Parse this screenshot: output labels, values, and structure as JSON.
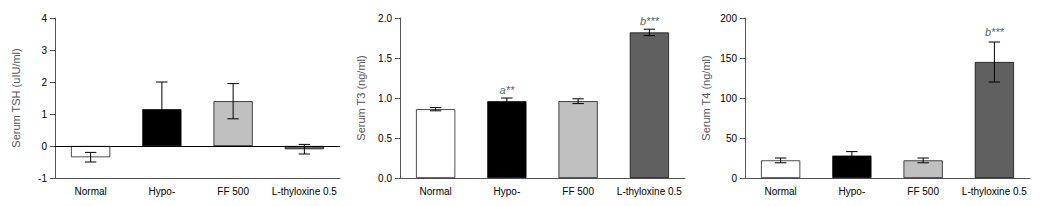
{
  "chart_data": [
    {
      "type": "bar",
      "ylabel": "Serum TSH (uIU/ml)",
      "categories": [
        "Normal",
        "Hypo-",
        "FF 500",
        "L-thyloxine 0.5"
      ],
      "values": [
        -0.35,
        1.15,
        1.4,
        -0.1
      ],
      "errors": [
        0.15,
        0.85,
        0.55,
        0.15
      ],
      "colors": [
        "#ffffff",
        "#000000",
        "#c0c0c0",
        "#606060"
      ],
      "ylim": [
        -1,
        4
      ],
      "yticks": [
        -1,
        0,
        1,
        2,
        3,
        4
      ],
      "grid": false,
      "annotations": []
    },
    {
      "type": "bar",
      "ylabel": "Serum T3 (ng/ml)",
      "categories": [
        "Normal",
        "Hypo-",
        "FF 500",
        "L-thyloxine 0.5"
      ],
      "values": [
        0.86,
        0.96,
        0.96,
        1.82
      ],
      "errors": [
        0.02,
        0.04,
        0.03,
        0.04
      ],
      "colors": [
        "#ffffff",
        "#000000",
        "#c0c0c0",
        "#606060"
      ],
      "ylim": [
        0,
        2.0
      ],
      "yticks": [
        {
          "value": 0,
          "label": "0.0"
        },
        0.5,
        {
          "value": 1,
          "label": "1.0"
        },
        1.5,
        {
          "value": 2,
          "label": "2.0"
        }
      ],
      "grid": false,
      "annotations": [
        {
          "text": "a**",
          "category": "Hypo-",
          "y": 1.01
        },
        {
          "text": "b***",
          "category": "L-thyloxine 0.5",
          "y": 1.87
        }
      ]
    },
    {
      "type": "bar",
      "ylabel": "Serum T4 (ng/ml)",
      "categories": [
        "Normal",
        "Hypo-",
        "FF 500",
        "L-thyloxine 0.5"
      ],
      "values": [
        22,
        28,
        22,
        145
      ],
      "errors": [
        3,
        5,
        3,
        25
      ],
      "colors": [
        "#ffffff",
        "#000000",
        "#c0c0c0",
        "#606060"
      ],
      "ylim": [
        0,
        200
      ],
      "yticks": [
        0,
        50,
        100,
        150,
        200
      ],
      "grid": false,
      "annotations": [
        {
          "text": "b***",
          "category": "L-thyloxine 0.5",
          "y": 173
        }
      ]
    }
  ]
}
